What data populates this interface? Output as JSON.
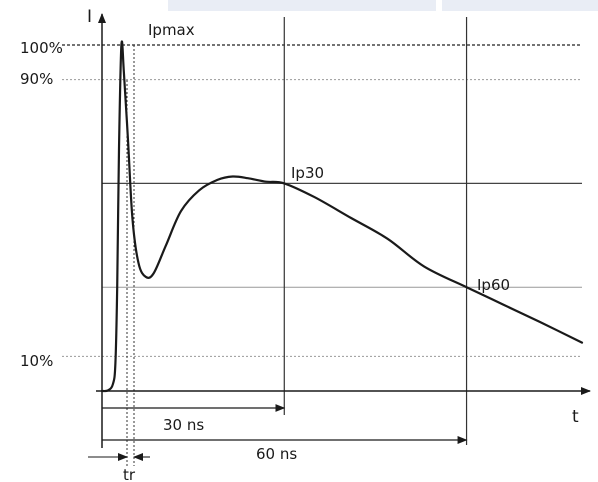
{
  "chart_data": {
    "type": "line",
    "title": "",
    "xlabel": "t",
    "ylabel": "I",
    "y_tick_labels": [
      "100%",
      "90%",
      "10%"
    ],
    "annotations": {
      "peak": "Ipmax",
      "at_30": "Ip30",
      "at_60": "Ip60",
      "rise_time": "tr",
      "interval_30": "30 ns",
      "interval_60": "60 ns"
    },
    "levels_percent": {
      "max": 100,
      "ninety": 90,
      "ip30": 60,
      "ip60": 30,
      "ten": 10
    },
    "times_ns": {
      "start": 0,
      "marker_30": 30,
      "marker_60": 60
    },
    "series": [
      {
        "x": [
          0,
          1,
          1.8,
          2.2,
          2.5,
          2.8,
          3.2,
          3.6,
          4.3,
          5,
          6,
          7.2,
          8.5,
          10.5,
          13,
          16,
          19,
          21.5,
          24,
          27,
          30,
          35,
          41,
          47,
          53,
          60,
          66,
          72,
          79
        ],
        "y": [
          0,
          0.2,
          2,
          8,
          30,
          70,
          100,
          92,
          72,
          50,
          37,
          33,
          34,
          42,
          52,
          58,
          61,
          62,
          61.5,
          60.5,
          60,
          56,
          50,
          44,
          36,
          30,
          25,
          20,
          14
        ]
      }
    ],
    "grid": false,
    "legend": "none"
  }
}
